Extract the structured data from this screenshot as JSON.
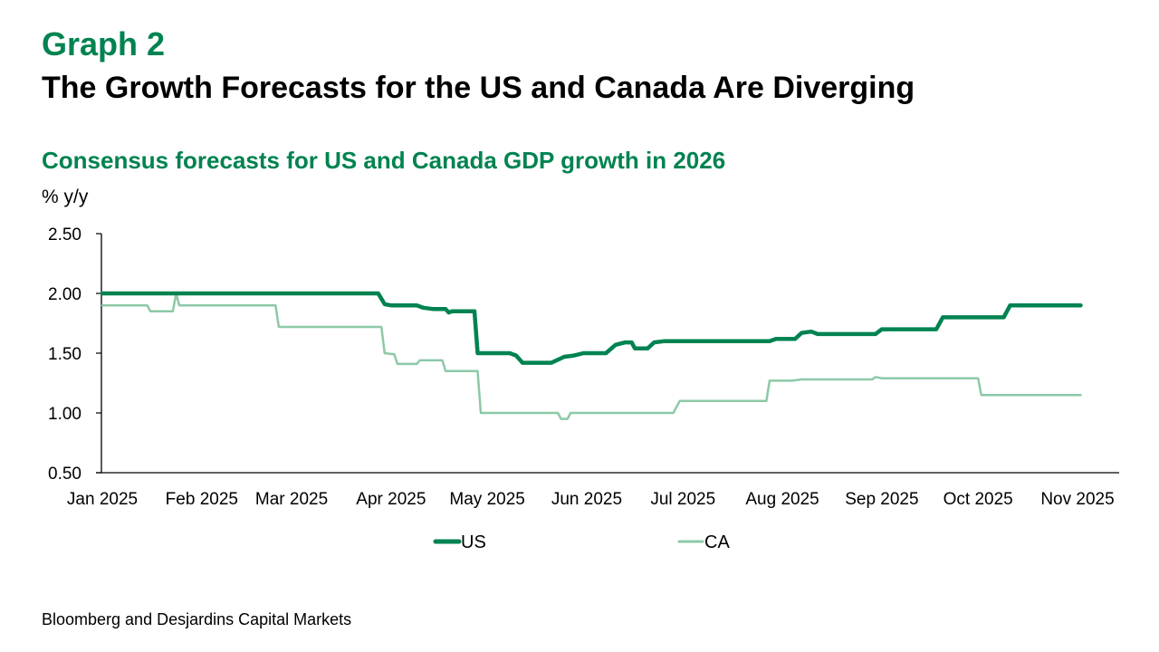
{
  "header": {
    "graph_label": "Graph 2",
    "title": "The Growth Forecasts for the US and Canada Are Diverging"
  },
  "footer": {
    "source": "Bloomberg and Desjardins Capital Markets"
  },
  "colors": {
    "us": "#008350",
    "ca": "#8cc9a7",
    "accent": "#008350"
  },
  "chart_data": {
    "type": "line",
    "title": "Consensus forecasts for US and Canada GDP growth in 2026",
    "ylabel": "% y/y",
    "xlabel": "",
    "ylim": [
      0.5,
      2.5
    ],
    "yticks": [
      "0.50",
      "1.00",
      "1.50",
      "2.00",
      "2.50"
    ],
    "ytick_values": [
      0.5,
      1.0,
      1.5,
      2.0,
      2.5
    ],
    "xlim_days": [
      0,
      304
    ],
    "xticks": [
      "Jan 2025",
      "Feb 2025",
      "Mar 2025",
      "Apr 2025",
      "May 2025",
      "Jun 2025",
      "Jul 2025",
      "Aug 2025",
      "Sep 2025",
      "Oct 2025",
      "Nov 2025"
    ],
    "xtick_days": [
      0,
      31,
      59,
      90,
      120,
      151,
      181,
      212,
      243,
      273,
      304
    ],
    "grid": false,
    "legend": "bottom-center",
    "series": [
      {
        "name": "US",
        "points": [
          [
            0,
            2.0
          ],
          [
            86,
            2.0
          ],
          [
            88,
            1.91
          ],
          [
            90,
            1.9
          ],
          [
            98,
            1.9
          ],
          [
            100,
            1.88
          ],
          [
            103,
            1.87
          ],
          [
            107,
            1.87
          ],
          [
            108,
            1.84
          ],
          [
            109,
            1.85
          ],
          [
            116,
            1.85
          ],
          [
            117,
            1.5
          ],
          [
            127,
            1.5
          ],
          [
            129,
            1.48
          ],
          [
            131,
            1.42
          ],
          [
            140,
            1.42
          ],
          [
            144,
            1.47
          ],
          [
            147,
            1.48
          ],
          [
            150,
            1.5
          ],
          [
            157,
            1.5
          ],
          [
            160,
            1.57
          ],
          [
            163,
            1.59
          ],
          [
            165,
            1.59
          ],
          [
            166,
            1.54
          ],
          [
            170,
            1.54
          ],
          [
            172,
            1.59
          ],
          [
            175,
            1.6
          ],
          [
            208,
            1.6
          ],
          [
            210,
            1.62
          ],
          [
            216,
            1.62
          ],
          [
            218,
            1.67
          ],
          [
            221,
            1.68
          ],
          [
            223,
            1.66
          ],
          [
            241,
            1.66
          ],
          [
            243,
            1.7
          ],
          [
            260,
            1.7
          ],
          [
            262,
            1.8
          ],
          [
            281,
            1.8
          ],
          [
            283,
            1.9
          ],
          [
            305,
            1.9
          ]
        ]
      },
      {
        "name": "CA",
        "points": [
          [
            0,
            1.9
          ],
          [
            14,
            1.9
          ],
          [
            15,
            1.85
          ],
          [
            22,
            1.85
          ],
          [
            23,
            2.0
          ],
          [
            24,
            1.9
          ],
          [
            54,
            1.9
          ],
          [
            55,
            1.72
          ],
          [
            87,
            1.72
          ],
          [
            88,
            1.5
          ],
          [
            91,
            1.49
          ],
          [
            92,
            1.41
          ],
          [
            98,
            1.41
          ],
          [
            99,
            1.44
          ],
          [
            106,
            1.44
          ],
          [
            107,
            1.35
          ],
          [
            117,
            1.35
          ],
          [
            118,
            1.0
          ],
          [
            142,
            1.0
          ],
          [
            143,
            0.95
          ],
          [
            145,
            0.95
          ],
          [
            146,
            1.0
          ],
          [
            178,
            1.0
          ],
          [
            180,
            1.1
          ],
          [
            207,
            1.1
          ],
          [
            208,
            1.27
          ],
          [
            215,
            1.27
          ],
          [
            218,
            1.28
          ],
          [
            240,
            1.28
          ],
          [
            241,
            1.3
          ],
          [
            243,
            1.29
          ],
          [
            273,
            1.29
          ],
          [
            274,
            1.15
          ],
          [
            305,
            1.15
          ]
        ]
      }
    ]
  }
}
